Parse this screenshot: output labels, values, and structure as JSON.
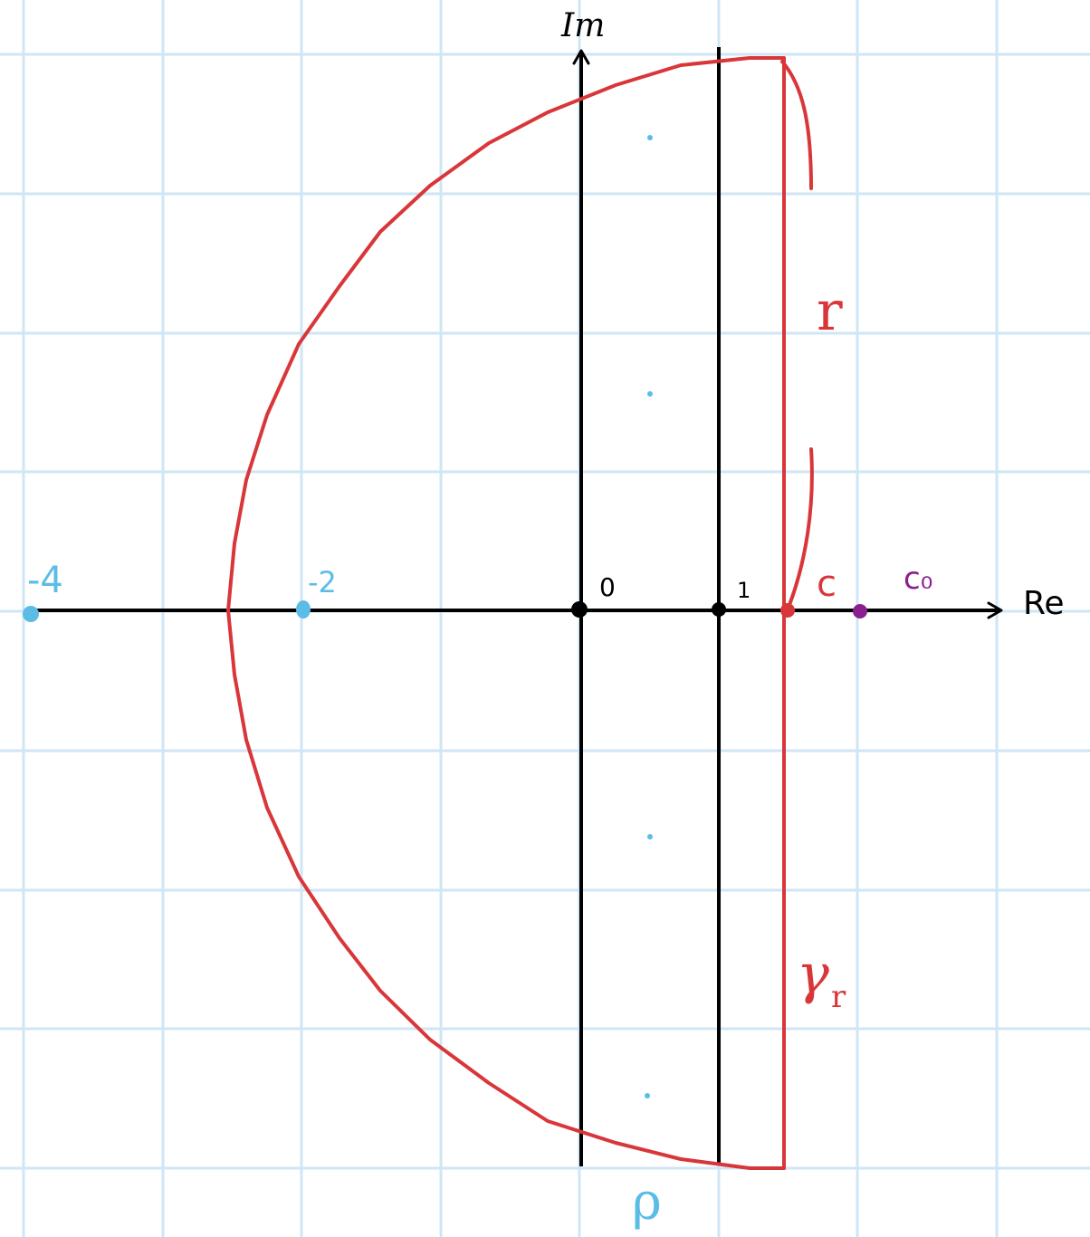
{
  "colors": {
    "grid": "#cfe6f6",
    "axis": "#000000",
    "contour": "#d9363a",
    "cyan": "#5bbde6",
    "purple": "#8b1f8f",
    "background": "#ffffff"
  },
  "axes": {
    "x_label": "Re",
    "y_label": "Im"
  },
  "labels": {
    "origin": "0",
    "one": "1",
    "c": "c",
    "c0": "c₀",
    "r": "r",
    "gamma_r": "γ",
    "gamma_r_sub": "r",
    "rho": "ρ"
  },
  "poles": {
    "minus_four": "-4",
    "minus_two": "-2"
  }
}
